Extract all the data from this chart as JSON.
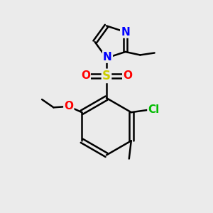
{
  "background_color": "#ebebeb",
  "atom_colors": {
    "N": "#0000FF",
    "O": "#FF0000",
    "S": "#CCCC00",
    "Cl": "#00BB00",
    "C": "#000000",
    "H": "#000000"
  },
  "bond_color": "#000000",
  "bond_width": 1.8,
  "font_size_atom": 10,
  "fig_size": [
    3.0,
    3.0
  ],
  "dpi": 100
}
